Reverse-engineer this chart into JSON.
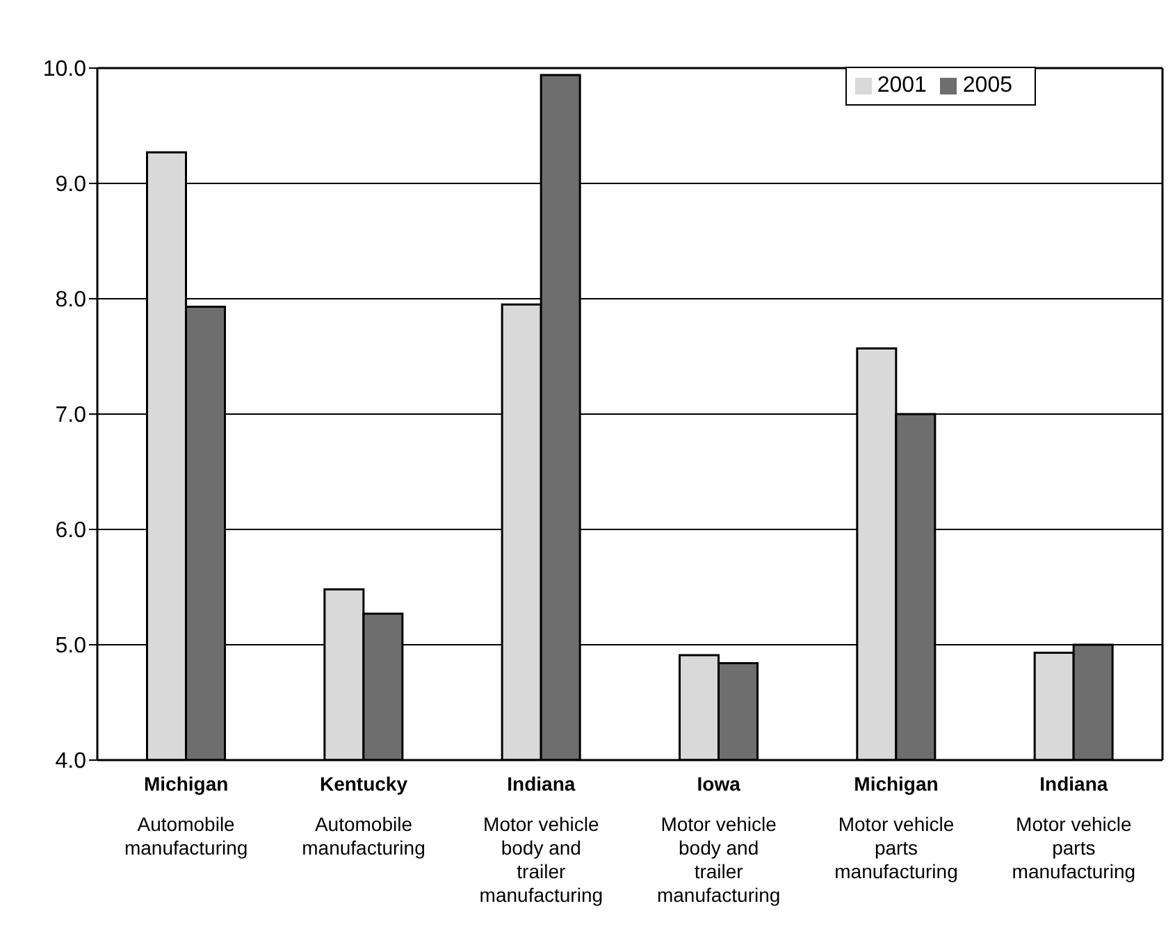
{
  "chart_data": {
    "type": "bar",
    "categories": [
      "Michigan\nAutomobile manufacturing",
      "Kentucky\nAutomobile manufacturing",
      "Indiana\nMotor vehicle body and trailer manufacturing",
      "Iowa\nMotor vehicle body and trailer manufacturing",
      "Michigan\nMotor vehicle parts manufacturing",
      "Indiana\nMotor vehicle parts manufacturing"
    ],
    "series": [
      {
        "name": "2001",
        "color": "#d9d9d9",
        "values": [
          9.27,
          5.48,
          7.95,
          4.91,
          7.57,
          4.93
        ]
      },
      {
        "name": "2005",
        "color": "#6e6e6e",
        "values": [
          7.93,
          5.27,
          9.94,
          4.84,
          7.0,
          5.0
        ]
      }
    ],
    "ylim": [
      4.0,
      10.0
    ],
    "yticks": [
      {
        "value": 4,
        "label": "4.0"
      },
      {
        "value": 5,
        "label": "5.0"
      },
      {
        "value": 6,
        "label": "6.0"
      },
      {
        "value": 7,
        "label": "7.0"
      },
      {
        "value": 8,
        "label": "8.0"
      },
      {
        "value": 9,
        "label": "9.0"
      },
      {
        "value": 10,
        "label": "10.0"
      }
    ],
    "grid": "y",
    "legend": "top right"
  }
}
